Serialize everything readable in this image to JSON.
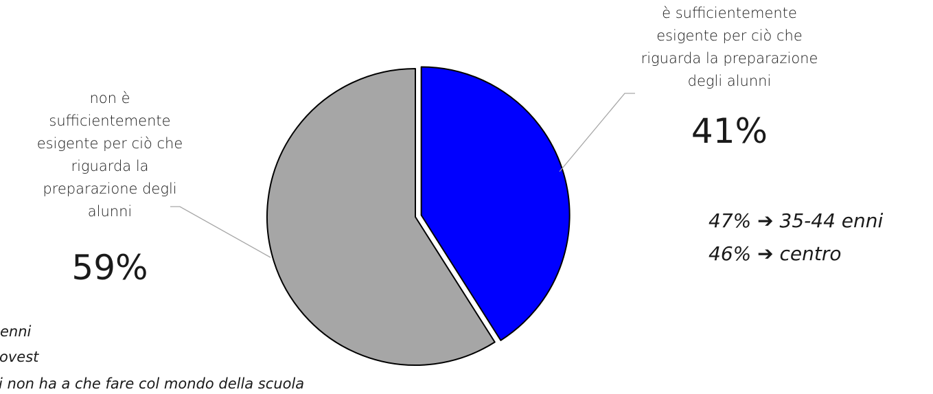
{
  "chart_data": {
    "type": "pie",
    "slices": [
      {
        "label": "è sufficientemente esigente per ciò che riguarda la preparazione degli alunni",
        "value": 41,
        "value_label": "41%",
        "color": "#0000ff",
        "exploded": true
      },
      {
        "label": "non è sufficientemente esigente per ciò che riguarda la preparazione degli alunni",
        "value": 59,
        "value_label": "59%",
        "color": "#a6a6a6",
        "exploded": false
      }
    ]
  },
  "label_right_lines": [
    "è sufficientemente",
    "esigente per ciò che",
    "riguarda la preparazione",
    "degli alunni"
  ],
  "label_left_lines": [
    "non è",
    "sufficientemente",
    "esigente per ciò che",
    "riguarda la",
    "preparazione degli",
    "alunni"
  ],
  "notes_right": [
    {
      "pct": "47%",
      "arrow": "➔",
      "text": "35-44 enni"
    },
    {
      "pct": "46%",
      "arrow": "➔",
      "text": "centro"
    }
  ],
  "notes_left_cut": [
    "enni",
    "ovest",
    "i non ha a che fare col mondo della scuola"
  ]
}
